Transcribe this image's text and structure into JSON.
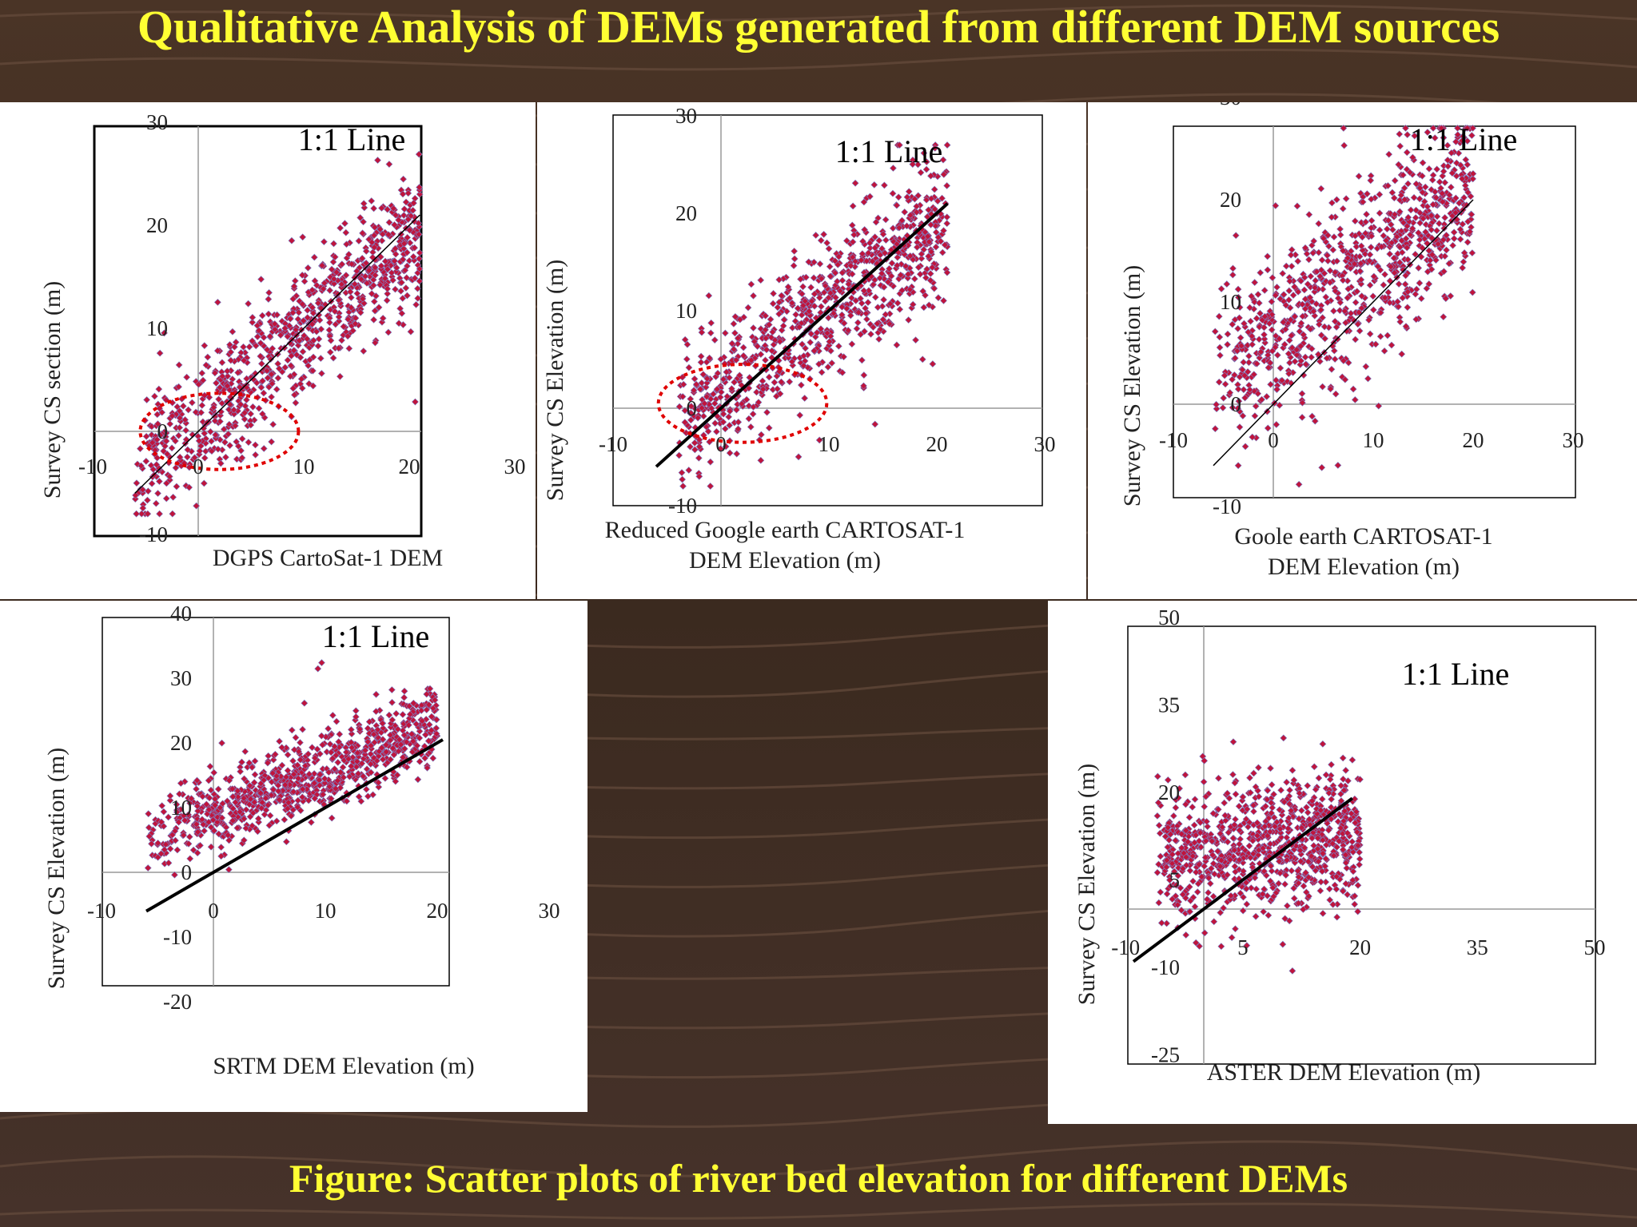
{
  "title": "Qualitative Analysis of DEMs generated from different DEM sources",
  "caption": "Figure: Scatter plots of river bed elevation for different DEMs",
  "colors": {
    "title_text": "#ffff33",
    "point": "#c0143c",
    "point_edge": "#7a84c8",
    "line": "#000000",
    "circle": "#e00000"
  },
  "chart_data": [
    {
      "type": "scatter",
      "annotation": "1:1 Line",
      "xlabel": "DGPS CartoSat-1 DEM",
      "ylabel": "Survey CS section (m)",
      "xlim": [
        -10,
        30
      ],
      "ylim": [
        -10,
        30
      ],
      "xticks": [
        "-10",
        "0",
        "10",
        "20",
        "30"
      ],
      "yticks": [
        "-10",
        "0",
        "10",
        "20",
        "30"
      ],
      "xtick_values": [
        -10,
        0,
        10,
        20,
        30
      ],
      "ytick_values": [
        -10,
        0,
        10,
        20,
        30
      ],
      "line_x": [
        -6,
        21
      ],
      "line_width": "thin",
      "highlight_ellipse": {
        "cx": 2,
        "cy": 0,
        "rx": 7.5,
        "ry": 3.7
      },
      "point_cloud": {
        "count": 900,
        "x_range": [
          -6,
          21
        ],
        "intercept": 1.0,
        "slope": 0.88,
        "spread": 3.2,
        "seed": 11
      }
    },
    {
      "type": "scatter",
      "annotation": "1:1 Line",
      "xlabel": "Reduced Google earth  CARTOSAT-1 DEM Elevation (m)",
      "ylabel": "Survey CS Elevation (m)",
      "xlim": [
        -10,
        30
      ],
      "ylim": [
        -10,
        30
      ],
      "xticks": [
        "-10",
        "0",
        "10",
        "20",
        "30"
      ],
      "yticks": [
        "-10",
        "0",
        "10",
        "20",
        "30"
      ],
      "xtick_values": [
        -10,
        0,
        10,
        20,
        30
      ],
      "ytick_values": [
        -10,
        0,
        10,
        20,
        30
      ],
      "line_x": [
        -6,
        21
      ],
      "line_width": "thick",
      "highlight_ellipse": {
        "cx": 2,
        "cy": 0.5,
        "rx": 7.8,
        "ry": 4
      },
      "point_cloud": {
        "count": 900,
        "x_range": [
          -4,
          21
        ],
        "intercept": 2.2,
        "slope": 0.82,
        "spread": 3.6,
        "seed": 23
      }
    },
    {
      "type": "scatter",
      "annotation": "1:1 Line",
      "xlabel": "Goole earth CARTOSAT-1 DEM  Elevation (m)",
      "ylabel": "Survey CS Elevation (m)",
      "xlim": [
        -10,
        30
      ],
      "ylim": [
        -10,
        30
      ],
      "xticks": [
        "-10",
        "0",
        "10",
        "20",
        "30"
      ],
      "yticks": [
        "-10",
        "0",
        "10",
        "20",
        "30"
      ],
      "xtick_values": [
        -10,
        0,
        10,
        20,
        30
      ],
      "ytick_values": [
        -10,
        0,
        10,
        20,
        30
      ],
      "line_x": [
        -6,
        20
      ],
      "line_width": "thin",
      "point_cloud": {
        "count": 900,
        "x_range": [
          -6,
          20
        ],
        "intercept": 6.5,
        "slope": 0.72,
        "spread": 4.2,
        "seed": 37
      }
    },
    {
      "type": "scatter",
      "annotation": "1:1 Line",
      "xlabel": "SRTM DEM Elevation (m)",
      "ylabel": "Survey CS Elevation (m)",
      "xlim": [
        -10,
        30
      ],
      "ylim": [
        -20,
        40
      ],
      "xticks": [
        "-10",
        "0",
        "10",
        "20",
        "30"
      ],
      "yticks": [
        "-20",
        "-10",
        "0",
        "10",
        "20",
        "30",
        "40"
      ],
      "xtick_values": [
        -10,
        0,
        10,
        20,
        30
      ],
      "ytick_values": [
        -20,
        -10,
        0,
        10,
        20,
        30,
        40
      ],
      "line_x": [
        -6,
        20.5
      ],
      "line_width": "thick",
      "point_cloud": {
        "count": 900,
        "x_range": [
          -6,
          20
        ],
        "intercept": 9.0,
        "slope": 0.7,
        "spread": 3.0,
        "seed": 51
      }
    },
    {
      "type": "scatter",
      "annotation": "1:1 Line",
      "xlabel": "ASTER DEM Elevation (m)",
      "ylabel": "Survey CS Elevation (m)",
      "xlim": [
        -10,
        50
      ],
      "ylim": [
        -25,
        50
      ],
      "xticks": [
        "-10",
        "5",
        "20",
        "35",
        "50"
      ],
      "yticks": [
        "-25",
        "-10",
        "5",
        "20",
        "35",
        "50"
      ],
      "xtick_values": [
        -10,
        5,
        20,
        35,
        50
      ],
      "ytick_values": [
        -25,
        -10,
        5,
        20,
        35,
        50
      ],
      "line_x": [
        -9,
        19
      ],
      "line_width": "thick",
      "point_cloud": {
        "count": 900,
        "x_range": [
          -6,
          20
        ],
        "intercept": 10.0,
        "slope": 0.15,
        "spread": 5.5,
        "seed": 73
      }
    }
  ]
}
